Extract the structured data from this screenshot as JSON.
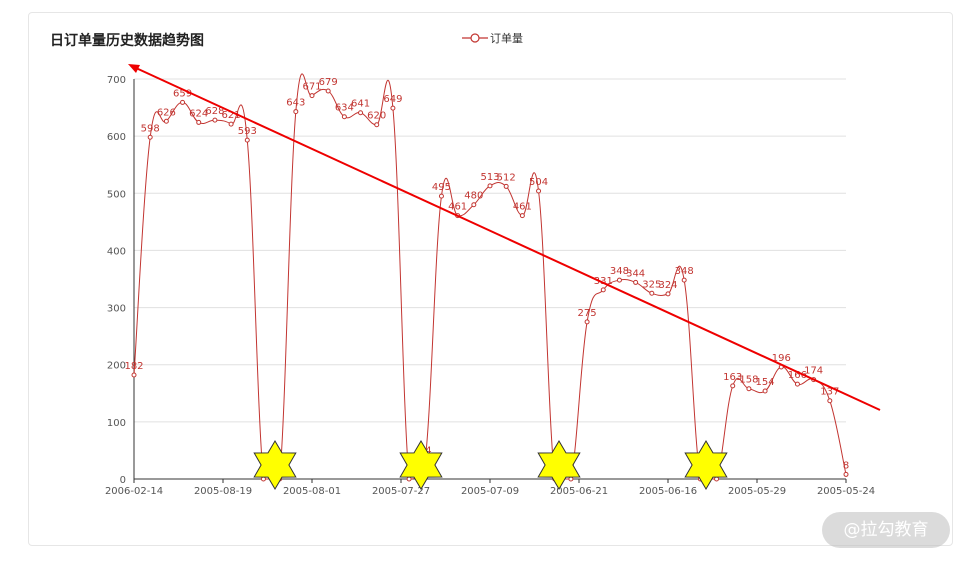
{
  "chart_data": {
    "type": "line",
    "title": "日订单量历史数据趋势图",
    "legend": "订单量",
    "legend_position": "top-center",
    "ylim": [
      0,
      700
    ],
    "yticks": [
      0,
      100,
      200,
      300,
      400,
      500,
      600,
      700
    ],
    "xtick_labels": [
      "2006-02-14",
      "2005-08-19",
      "2005-08-01",
      "2005-07-27",
      "2005-07-09",
      "2005-06-21",
      "2005-06-16",
      "2005-05-29",
      "2005-05-24"
    ],
    "grid": true,
    "line_color": "#c23531",
    "series": [
      {
        "name": "订单量",
        "values": [
          182,
          598,
          626,
          659,
          624,
          628,
          621,
          593,
          0,
          0,
          643,
          671,
          679,
          634,
          641,
          620,
          649,
          0,
          34,
          495,
          461,
          480,
          513,
          512,
          461,
          504,
          0,
          0,
          275,
          331,
          348,
          344,
          325,
          324,
          348,
          0,
          0,
          163,
          158,
          154,
          196,
          166,
          174,
          137,
          8
        ],
        "labels": [
          "182",
          "598",
          "626",
          "659",
          "624",
          "628",
          "621",
          "593",
          "",
          "",
          "643",
          "671",
          "679",
          "634",
          "641",
          "620",
          "649",
          "",
          "34",
          "495",
          "461",
          "480",
          "513",
          "512",
          "461",
          "504",
          "",
          "",
          "275",
          "331",
          "348",
          "344",
          "325",
          "324",
          "348",
          "",
          "",
          "163",
          "158",
          "154",
          "196",
          "166",
          "174",
          "137",
          "8"
        ]
      }
    ],
    "annotations": {
      "trend_arrow_color": "#ee0000",
      "star_color": "#ffff00"
    }
  },
  "watermark": "@拉勾教育"
}
